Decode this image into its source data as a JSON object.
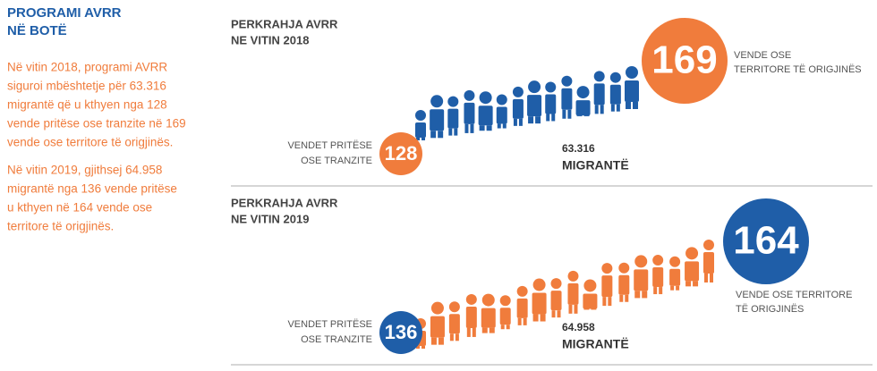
{
  "sidebar": {
    "title_lines": [
      "PROGRAMI AVRR",
      "NË BOTË"
    ],
    "paragraphs": [
      [
        "Në vitin 2018, programi AVRR",
        "siguroi mbështetje për 63.316",
        "migrantë që u kthyen nga 128",
        "vende pritëse ose tranzite në 169",
        "vende ose territore të origjinës."
      ],
      [
        "Në vitin 2019, gjithsej 64.958",
        "migrantë nga 136 vende pritëse",
        "u kthyen në 164 vende ose",
        "territore të origjinës."
      ]
    ]
  },
  "panels": [
    {
      "heading_lines": [
        "PERKRAHJA AVRR",
        "NE VITIN 2018"
      ],
      "host_label_lines": [
        "VENDET PRITËSE",
        "OSE TRANZITE"
      ],
      "host_count": "128",
      "migrants_count": "63.316",
      "migrants_label": "MIGRANTË",
      "origin_count": "169",
      "origin_label_lines": [
        "VENDE OSE",
        "TERRITORE TË ORIGJINËS"
      ]
    },
    {
      "heading_lines": [
        "PERKRAHJA AVRR",
        "NE VITIN 2019"
      ],
      "host_label_lines": [
        "VENDET PRITËSE",
        "OSE TRANZITE"
      ],
      "host_count": "136",
      "migrants_count": "64.958",
      "migrants_label": "MIGRANTË",
      "origin_count": "164",
      "origin_label_lines": [
        "VENDE OSE TERRITORE",
        "TË ORIGJINËS"
      ]
    }
  ]
}
